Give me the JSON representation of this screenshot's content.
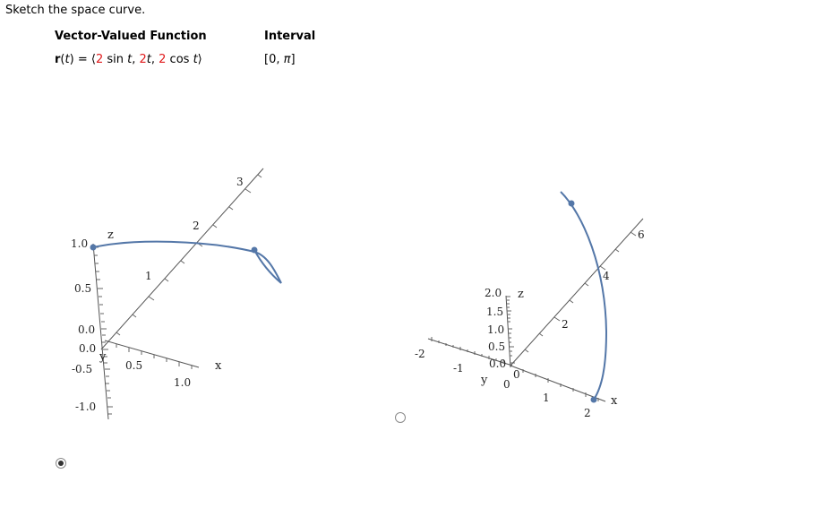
{
  "prompt": "Sketch the space curve.",
  "table": {
    "col1_header": "Vector-Valued Function",
    "col2_header": "Interval",
    "func": {
      "r": "r",
      "t_arg": "t",
      "eq": " = ",
      "open": "⟨",
      "c1": "2",
      "f1": " sin ",
      "a1": "t",
      "sep1": ", ",
      "c2": "2",
      "a2": "t",
      "sep2": ", ",
      "c3": "2",
      "f3": " cos ",
      "a3": "t",
      "close": "⟩"
    },
    "interval": {
      "open": "[0, ",
      "pi": "π",
      "close": "]"
    }
  },
  "options": [
    {
      "selected": true,
      "axis_labels": {
        "z": "z",
        "y": "y",
        "x": "x"
      },
      "z_ticks": [
        "1.0",
        "0.5",
        "0.0",
        "0.0",
        "-0.5",
        "-1.0"
      ],
      "y_ticks": [
        "1",
        "2",
        "3"
      ],
      "x_ticks": [
        "0.5",
        "1.0"
      ]
    },
    {
      "selected": false,
      "axis_labels": {
        "z": "z",
        "y": "y",
        "x": "x"
      },
      "z_ticks": [
        "2.0",
        "1.5",
        "1.0",
        "0.5",
        "0.0"
      ],
      "y_ticks": [
        "-2",
        "-1",
        "0",
        "2",
        "4",
        "6"
      ],
      "x_ticks": [
        "0",
        "1",
        "2"
      ]
    }
  ],
  "colors": {
    "curve": "#5477a8",
    "axis": "#555555",
    "red": "#e0191b"
  }
}
